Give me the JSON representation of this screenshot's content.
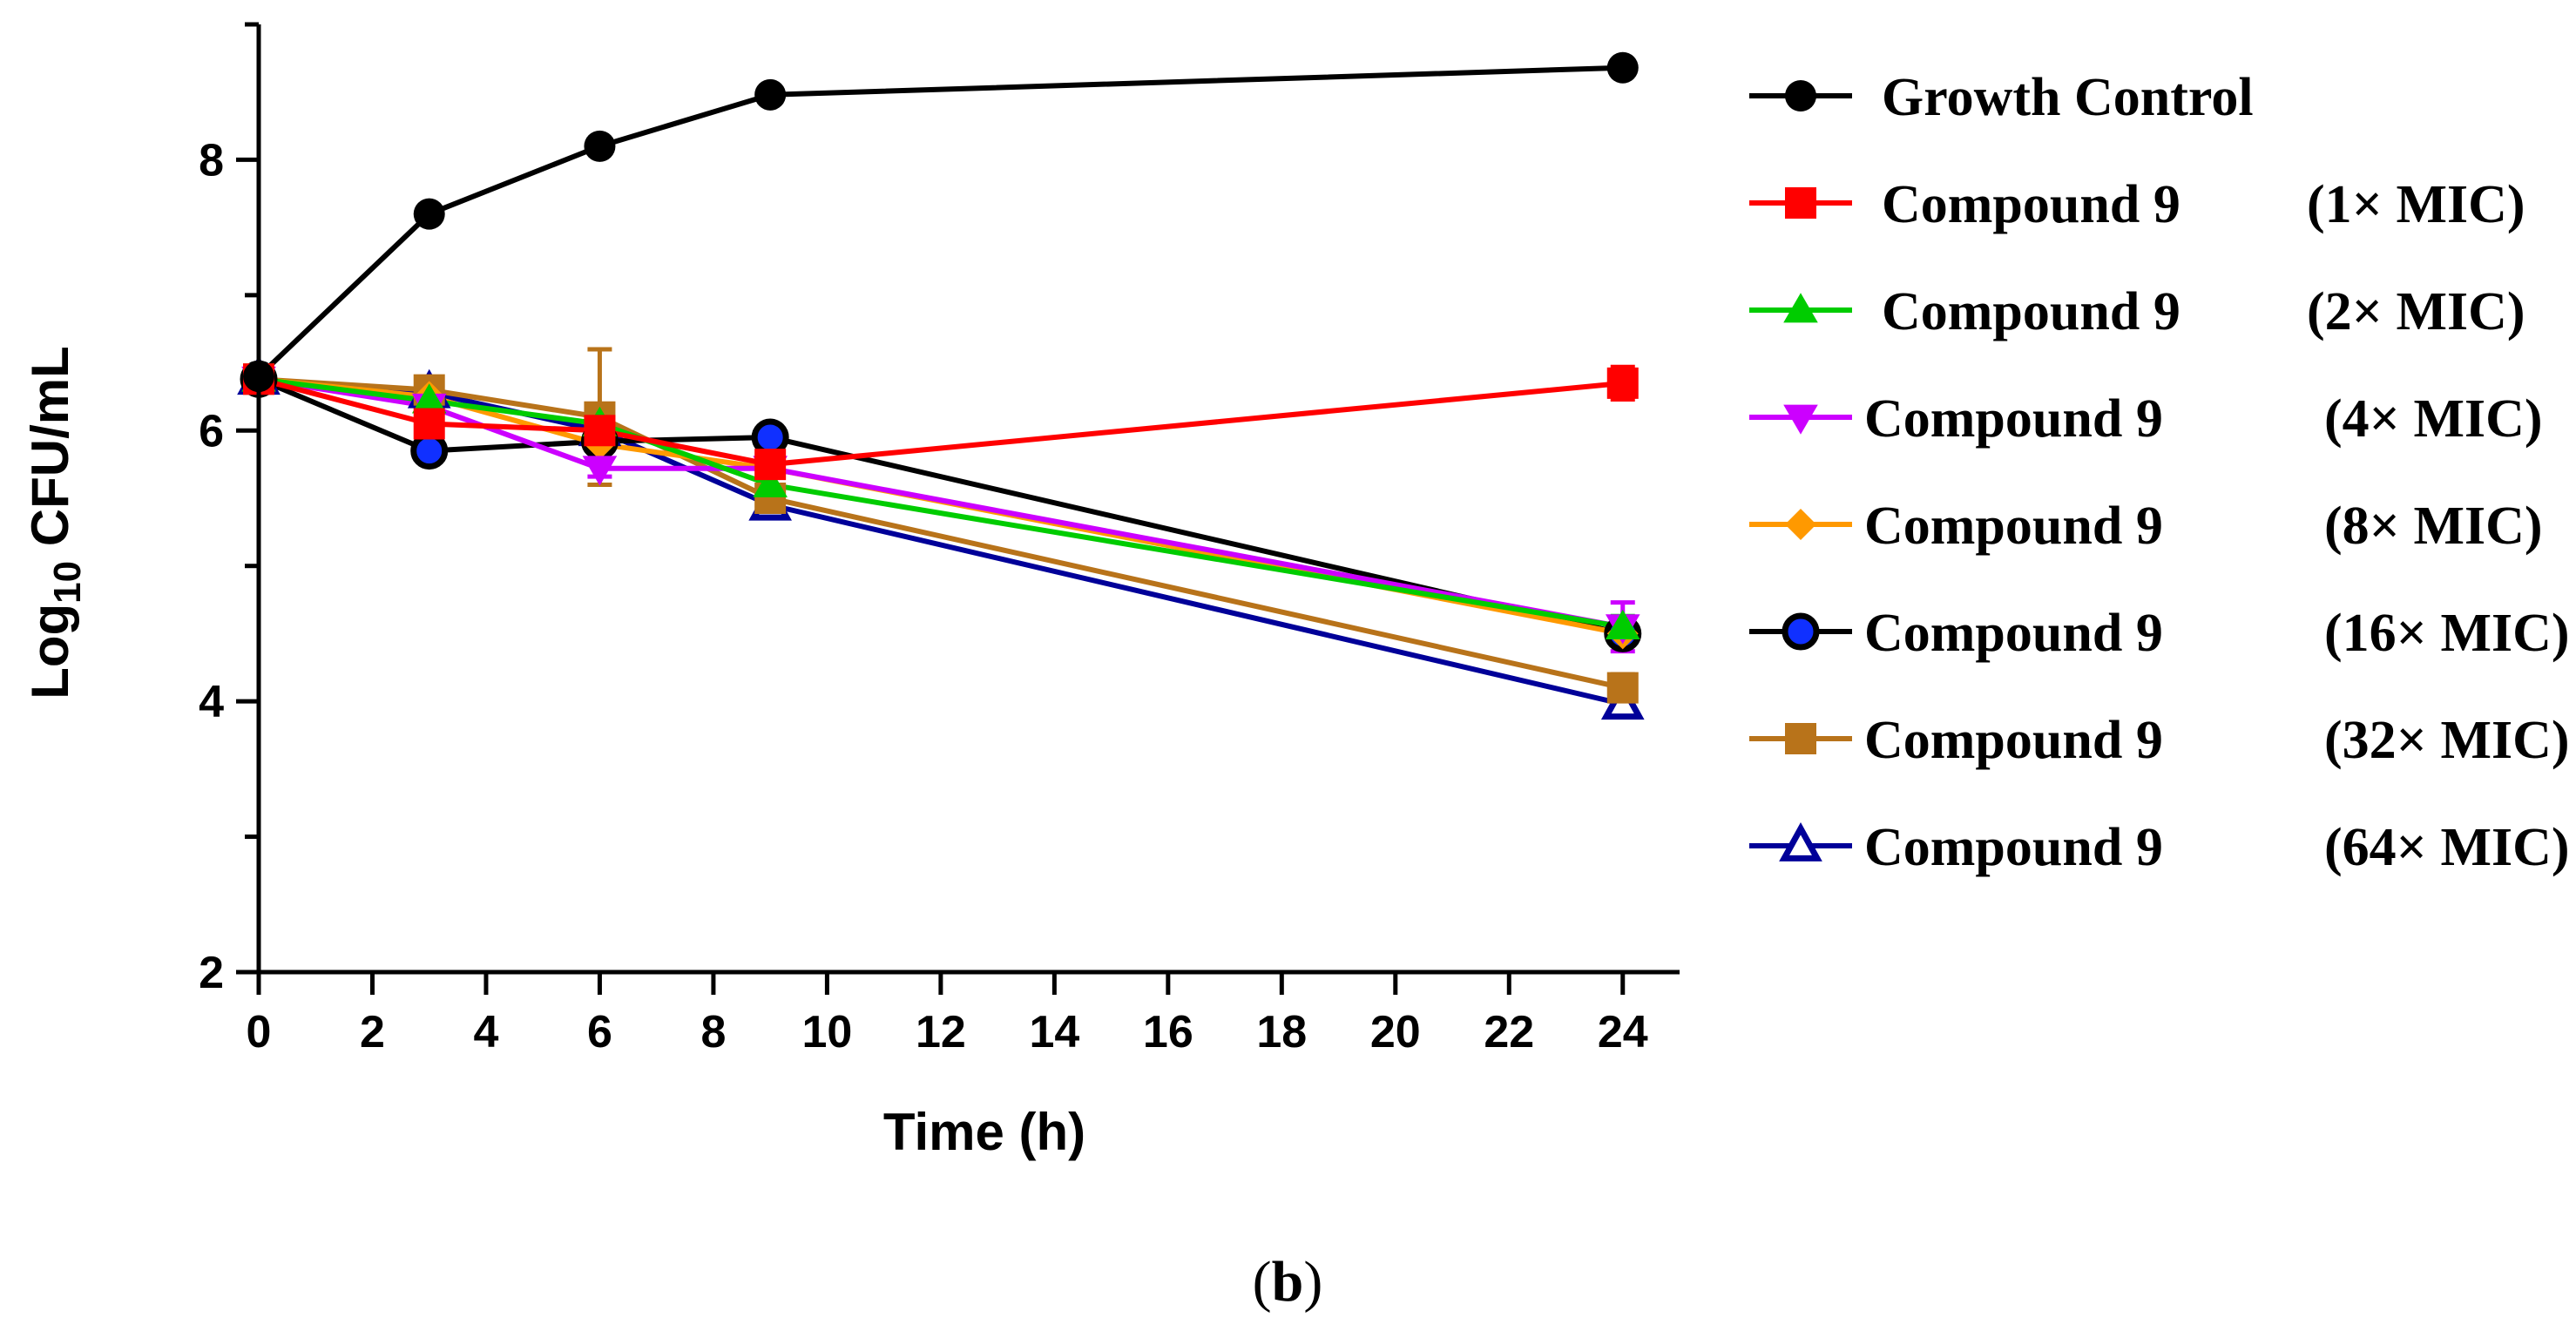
{
  "chart_data": {
    "type": "line",
    "panel_label": {
      "open": "(",
      "letter": "b",
      "close": ")"
    },
    "xlabel": "Time (h)",
    "ylabel": {
      "base": "Log",
      "subscript": "10",
      "rest": " CFU/mL"
    },
    "x_ticks": [
      "0",
      "2",
      "4",
      "6",
      "8",
      "10",
      "12",
      "14",
      "16",
      "18",
      "20",
      "22",
      "24"
    ],
    "y_ticks": [
      "2",
      "4",
      "6",
      "8"
    ],
    "xlim": [
      0,
      25
    ],
    "ylim": [
      2,
      9
    ],
    "x": [
      0,
      3,
      6,
      9,
      24
    ],
    "series": [
      {
        "name": "Growth Control",
        "legend_name": "Growth Control",
        "legend_conc": "",
        "color": "#000000",
        "marker": "circle",
        "values": [
          6.4,
          7.6,
          8.1,
          8.48,
          8.68
        ],
        "errors": [
          0,
          0,
          0,
          0,
          0
        ]
      },
      {
        "name": "Compound 9 (1× MIC)",
        "legend_name": "Compound 9",
        "legend_conc": "(1× MIC)",
        "color": "#ff0000",
        "marker": "square",
        "values": [
          6.38,
          6.05,
          6.0,
          5.75,
          6.35
        ],
        "errors": [
          0,
          0.08,
          0.1,
          0.08,
          0.12
        ]
      },
      {
        "name": "Compound 9 (2× MIC)",
        "legend_name": "Compound 9",
        "legend_conc": "(2× MIC)",
        "color": "#00cc00",
        "marker": "triangle-up",
        "values": [
          6.38,
          6.22,
          6.05,
          5.6,
          4.55
        ],
        "errors": [
          0,
          0.05,
          0.1,
          0.06,
          0.08
        ]
      },
      {
        "name": "Compound 9 (4× MIC)",
        "legend_name": "Compound 9",
        "legend_conc": "(4× MIC)",
        "color": "#cc00ff",
        "marker": "triangle-down",
        "values": [
          6.38,
          6.18,
          5.72,
          5.72,
          4.55
        ],
        "errors": [
          0,
          0.05,
          0.06,
          0.06,
          0.18
        ]
      },
      {
        "name": "Compound 9 (8× MIC)",
        "legend_name": "Compound 9",
        "legend_conc": "(8× MIC)",
        "color": "#ff9900",
        "marker": "diamond",
        "values": [
          6.38,
          6.25,
          5.9,
          5.72,
          4.5
        ],
        "errors": [
          0,
          0.05,
          0.06,
          0.06,
          0.08
        ]
      },
      {
        "name": "Compound 9 (16× MIC)",
        "legend_name": "Compound 9",
        "legend_conc": "(16× MIC)",
        "color": "#000000",
        "marker": "circle-blue",
        "values": [
          6.38,
          5.85,
          5.92,
          5.95,
          4.5
        ],
        "errors": [
          0,
          0.08,
          0.06,
          0.06,
          0.08
        ]
      },
      {
        "name": "Compound 9 (32× MIC)",
        "legend_name": "Compound 9",
        "legend_conc": "(32× MIC)",
        "color": "#b8731a",
        "marker": "square",
        "values": [
          6.38,
          6.3,
          6.1,
          5.5,
          4.1
        ],
        "errors": [
          0,
          0.06,
          0.5,
          0.06,
          0.1
        ]
      },
      {
        "name": "Compound 9 (64× MIC)",
        "legend_name": "Compound 9",
        "legend_conc": "(64× MIC)",
        "color": "#000099",
        "marker": "triangle-open",
        "values": [
          6.38,
          6.28,
          6.0,
          5.45,
          3.98
        ],
        "errors": [
          0,
          0.05,
          0.06,
          0.06,
          0.06
        ]
      }
    ]
  }
}
